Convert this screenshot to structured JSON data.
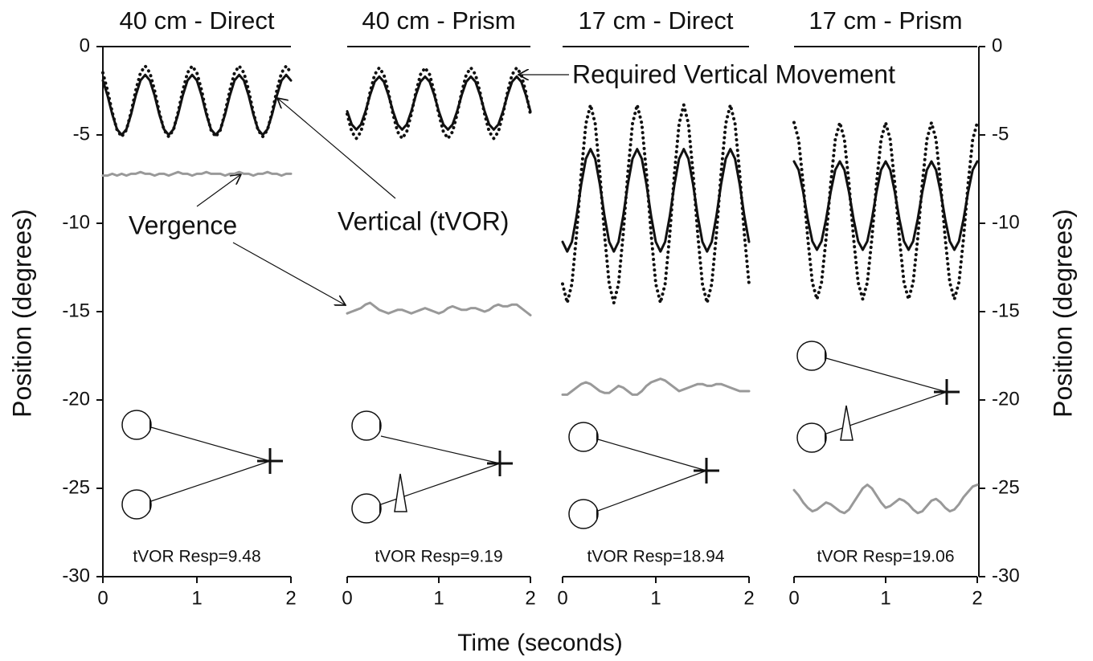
{
  "x_axis_label": "Time (seconds)",
  "chart_data": [
    {
      "type": "line",
      "title": "40 cm - Direct",
      "ylabel": "Position (degrees)",
      "ylim": [
        -30,
        0
      ],
      "yticks": [
        0,
        -5,
        -10,
        -15,
        -20,
        -25,
        -30
      ],
      "xlim": [
        0,
        2
      ],
      "xticks": [
        0,
        1,
        2
      ],
      "response_label": "tVOR Resp=9.48",
      "annotations": [
        "Vergence",
        "Vertical (tVOR)"
      ],
      "x": [
        0,
        0.05,
        0.1,
        0.15,
        0.2,
        0.25,
        0.3,
        0.35,
        0.4,
        0.45,
        0.5,
        0.55,
        0.6,
        0.65,
        0.7,
        0.75,
        0.8,
        0.85,
        0.9,
        0.95,
        1,
        1.05,
        1.1,
        1.15,
        1.2,
        1.25,
        1.3,
        1.35,
        1.4,
        1.45,
        1.5,
        1.55,
        1.6,
        1.65,
        1.7,
        1.75,
        1.8,
        1.85,
        1.9,
        1.95,
        2
      ],
      "series": [
        {
          "color": "#111111",
          "style": "solid",
          "values": [
            -1.92,
            -2.77,
            -3.83,
            -4.68,
            -5.0,
            -4.68,
            -3.83,
            -2.77,
            -1.92,
            -1.6,
            -1.92,
            -2.77,
            -3.83,
            -4.68,
            -5.0,
            -4.68,
            -3.83,
            -2.77,
            -1.92,
            -1.6,
            -1.92,
            -2.77,
            -3.83,
            -4.68,
            -5.0,
            -4.68,
            -3.83,
            -2.77,
            -1.92,
            -1.6,
            -1.92,
            -2.77,
            -3.83,
            -4.68,
            -5.0,
            -4.68,
            -3.83,
            -2.77,
            -1.92,
            -1.6,
            -1.92
          ]
        },
        {
          "color": "#111111",
          "style": "dotted",
          "values": [
            -1.48,
            -2.48,
            -3.72,
            -4.72,
            -5.1,
            -4.72,
            -3.72,
            -2.48,
            -1.48,
            -1.1,
            -1.48,
            -2.48,
            -3.72,
            -4.72,
            -5.1,
            -4.72,
            -3.72,
            -2.48,
            -1.48,
            -1.1,
            -1.48,
            -2.48,
            -3.72,
            -4.72,
            -5.1,
            -4.72,
            -3.72,
            -2.48,
            -1.48,
            -1.1,
            -1.48,
            -2.48,
            -3.72,
            -4.72,
            -5.1,
            -4.72,
            -3.72,
            -2.48,
            -1.48,
            -1.1,
            -1.48
          ]
        },
        {
          "color": "#999999",
          "style": "solid",
          "values": [
            -7.3,
            -7.3,
            -7.2,
            -7.3,
            -7.2,
            -7.3,
            -7.2,
            -7.2,
            -7.1,
            -7.2,
            -7.2,
            -7.3,
            -7.2,
            -7.2,
            -7.3,
            -7.2,
            -7.1,
            -7.2,
            -7.2,
            -7.3,
            -7.2,
            -7.2,
            -7.1,
            -7.2,
            -7.2,
            -7.2,
            -7.3,
            -7.2,
            -7.2,
            -7.1,
            -7.2,
            -7.2,
            -7.3,
            -7.2,
            -7.2,
            -7.1,
            -7.2,
            -7.2,
            -7.3,
            -7.2,
            -7.2
          ]
        }
      ]
    },
    {
      "type": "line",
      "title": "40 cm - Prism",
      "xlim": [
        0,
        2
      ],
      "xticks": [
        0,
        1,
        2
      ],
      "response_label": "tVOR Resp=9.19",
      "annotations": [
        "Required Vertical Movement"
      ],
      "x": [
        0,
        0.05,
        0.1,
        0.15,
        0.2,
        0.25,
        0.3,
        0.35,
        0.4,
        0.45,
        0.5,
        0.55,
        0.6,
        0.65,
        0.7,
        0.75,
        0.8,
        0.85,
        0.9,
        0.95,
        1,
        1.05,
        1.1,
        1.15,
        1.2,
        1.25,
        1.3,
        1.35,
        1.4,
        1.45,
        1.5,
        1.55,
        1.6,
        1.65,
        1.7,
        1.75,
        1.8,
        1.85,
        1.9,
        1.95,
        2
      ],
      "series": [
        {
          "color": "#111111",
          "style": "solid",
          "values": [
            -3.66,
            -4.41,
            -4.7,
            -4.41,
            -3.66,
            -2.74,
            -1.99,
            -1.7,
            -1.99,
            -2.74,
            -3.66,
            -4.41,
            -4.7,
            -4.41,
            -3.66,
            -2.74,
            -1.99,
            -1.7,
            -1.99,
            -2.74,
            -3.66,
            -4.41,
            -4.7,
            -4.41,
            -3.66,
            -2.74,
            -1.99,
            -1.7,
            -1.99,
            -2.74,
            -3.66,
            -4.41,
            -4.7,
            -4.41,
            -3.66,
            -2.74,
            -1.99,
            -1.7,
            -1.99,
            -2.74,
            -3.66
          ]
        },
        {
          "color": "#111111",
          "style": "dotted",
          "values": [
            -3.82,
            -4.82,
            -5.2,
            -4.82,
            -3.82,
            -2.58,
            -1.58,
            -1.2,
            -1.58,
            -2.58,
            -3.82,
            -4.82,
            -5.2,
            -4.82,
            -3.82,
            -2.58,
            -1.58,
            -1.2,
            -1.58,
            -2.58,
            -3.82,
            -4.82,
            -5.2,
            -4.82,
            -3.82,
            -2.58,
            -1.58,
            -1.2,
            -1.58,
            -2.58,
            -3.82,
            -4.82,
            -5.2,
            -4.82,
            -3.82,
            -2.58,
            -1.58,
            -1.2,
            -1.58,
            -2.58,
            -3.82
          ]
        },
        {
          "color": "#999999",
          "style": "solid",
          "values": [
            -15.1,
            -15.0,
            -14.9,
            -14.8,
            -14.6,
            -14.5,
            -14.7,
            -14.9,
            -15.0,
            -15.1,
            -15.0,
            -14.9,
            -14.9,
            -15.0,
            -15.1,
            -15.0,
            -14.9,
            -14.8,
            -14.9,
            -15.0,
            -15.1,
            -15.0,
            -14.8,
            -14.7,
            -14.8,
            -14.9,
            -14.9,
            -14.8,
            -14.8,
            -14.9,
            -15.0,
            -14.9,
            -14.7,
            -14.6,
            -14.7,
            -14.7,
            -14.6,
            -14.6,
            -14.8,
            -15.0,
            -15.2
          ]
        }
      ]
    },
    {
      "type": "line",
      "title": "17 cm - Direct",
      "xlim": [
        0,
        2
      ],
      "xticks": [
        0,
        1,
        2
      ],
      "response_label": "tVOR Resp=18.94",
      "x": [
        0,
        0.05,
        0.1,
        0.15,
        0.2,
        0.25,
        0.3,
        0.35,
        0.4,
        0.45,
        0.5,
        0.55,
        0.6,
        0.65,
        0.7,
        0.75,
        0.8,
        0.85,
        0.9,
        0.95,
        1,
        1.05,
        1.1,
        1.15,
        1.2,
        1.25,
        1.3,
        1.35,
        1.4,
        1.45,
        1.5,
        1.55,
        1.6,
        1.65,
        1.7,
        1.75,
        1.8,
        1.85,
        1.9,
        1.95,
        2
      ],
      "series": [
        {
          "color": "#111111",
          "style": "solid",
          "values": [
            -11.05,
            -11.6,
            -11.05,
            -9.6,
            -7.8,
            -6.35,
            -5.8,
            -6.35,
            -7.8,
            -9.6,
            -11.05,
            -11.6,
            -11.05,
            -9.6,
            -7.8,
            -6.35,
            -5.8,
            -6.35,
            -7.8,
            -9.6,
            -11.05,
            -11.6,
            -11.05,
            -9.6,
            -7.8,
            -6.35,
            -5.8,
            -6.35,
            -7.8,
            -9.6,
            -11.05,
            -11.6,
            -11.05,
            -9.6,
            -7.8,
            -6.35,
            -5.8,
            -6.35,
            -7.8,
            -9.6,
            -11.05
          ]
        },
        {
          "color": "#111111",
          "style": "dotted",
          "values": [
            -13.43,
            -14.5,
            -13.43,
            -10.63,
            -7.17,
            -4.37,
            -3.3,
            -4.37,
            -7.17,
            -10.63,
            -13.43,
            -14.5,
            -13.43,
            -10.63,
            -7.17,
            -4.37,
            -3.3,
            -4.37,
            -7.17,
            -10.63,
            -13.43,
            -14.5,
            -13.43,
            -10.63,
            -7.17,
            -4.37,
            -3.3,
            -4.37,
            -7.17,
            -10.63,
            -13.43,
            -14.5,
            -13.43,
            -10.63,
            -7.17,
            -4.37,
            -3.3,
            -4.37,
            -7.17,
            -10.63,
            -13.43
          ]
        },
        {
          "color": "#999999",
          "style": "solid",
          "values": [
            -19.7,
            -19.7,
            -19.5,
            -19.3,
            -19.1,
            -19.0,
            -19.1,
            -19.3,
            -19.5,
            -19.6,
            -19.6,
            -19.4,
            -19.2,
            -19.3,
            -19.5,
            -19.7,
            -19.7,
            -19.5,
            -19.2,
            -19.0,
            -18.9,
            -18.8,
            -18.9,
            -19.1,
            -19.3,
            -19.5,
            -19.4,
            -19.3,
            -19.2,
            -19.1,
            -19.1,
            -19.2,
            -19.2,
            -19.1,
            -19.1,
            -19.2,
            -19.3,
            -19.4,
            -19.5,
            -19.5,
            -19.5
          ]
        }
      ]
    },
    {
      "type": "line",
      "title": "17 cm - Prism",
      "ylabel": "Position (degrees)",
      "ylim": [
        -30,
        0
      ],
      "yticks": [
        0,
        -5,
        -10,
        -15,
        -20,
        -25,
        -30
      ],
      "xlim": [
        0,
        2
      ],
      "xticks": [
        0,
        1,
        2
      ],
      "response_label": "tVOR Resp=19.06",
      "x": [
        0,
        0.05,
        0.1,
        0.15,
        0.2,
        0.25,
        0.3,
        0.35,
        0.4,
        0.45,
        0.5,
        0.55,
        0.6,
        0.65,
        0.7,
        0.75,
        0.8,
        0.85,
        0.9,
        0.95,
        1,
        1.05,
        1.1,
        1.15,
        1.2,
        1.25,
        1.3,
        1.35,
        1.4,
        1.45,
        1.5,
        1.55,
        1.6,
        1.65,
        1.7,
        1.75,
        1.8,
        1.85,
        1.9,
        1.95,
        2
      ],
      "series": [
        {
          "color": "#111111",
          "style": "solid",
          "values": [
            -6.5,
            -6.98,
            -8.23,
            -9.77,
            -11.02,
            -11.5,
            -11.02,
            -9.77,
            -8.23,
            -6.98,
            -6.5,
            -6.98,
            -8.23,
            -9.77,
            -11.02,
            -11.5,
            -11.02,
            -9.77,
            -8.23,
            -6.98,
            -6.5,
            -6.98,
            -8.23,
            -9.77,
            -11.02,
            -11.5,
            -11.02,
            -9.77,
            -8.23,
            -6.98,
            -6.5,
            -6.98,
            -8.23,
            -9.77,
            -11.02,
            -11.5,
            -11.02,
            -9.77,
            -8.23,
            -6.98,
            -6.5
          ]
        },
        {
          "color": "#111111",
          "style": "dotted",
          "values": [
            -4.3,
            -5.26,
            -7.76,
            -10.85,
            -13.35,
            -14.3,
            -13.35,
            -10.85,
            -7.76,
            -5.26,
            -4.3,
            -5.26,
            -7.76,
            -10.85,
            -13.35,
            -14.3,
            -13.35,
            -10.85,
            -7.76,
            -5.26,
            -4.3,
            -5.26,
            -7.76,
            -10.85,
            -13.35,
            -14.3,
            -13.35,
            -10.85,
            -7.76,
            -5.26,
            -4.3,
            -5.26,
            -7.76,
            -10.85,
            -13.35,
            -14.3,
            -13.35,
            -10.85,
            -7.76,
            -5.26,
            -4.3
          ]
        },
        {
          "color": "#999999",
          "style": "solid",
          "values": [
            -25.1,
            -25.4,
            -25.8,
            -26.1,
            -26.3,
            -26.2,
            -26.0,
            -25.8,
            -25.9,
            -26.1,
            -26.3,
            -26.4,
            -26.2,
            -25.8,
            -25.4,
            -25.0,
            -24.8,
            -25.0,
            -25.4,
            -25.8,
            -26.1,
            -26.0,
            -25.8,
            -25.6,
            -25.7,
            -25.9,
            -26.2,
            -26.4,
            -26.3,
            -26.0,
            -25.7,
            -25.6,
            -25.8,
            -26.1,
            -26.3,
            -26.2,
            -25.9,
            -25.5,
            -25.2,
            -24.9,
            -24.8
          ]
        }
      ]
    }
  ]
}
